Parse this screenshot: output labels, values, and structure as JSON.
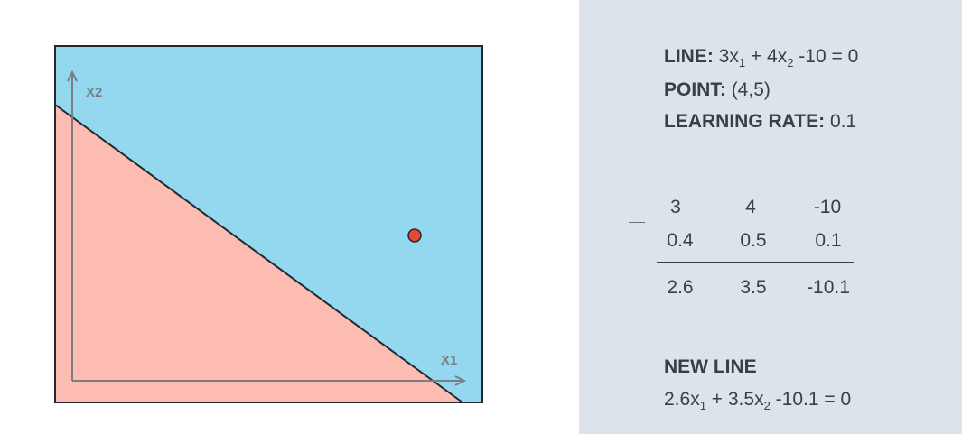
{
  "plot": {
    "x_axis_label": "X1",
    "y_axis_label": "X2",
    "colors": {
      "positive_region": "#93d8ef",
      "negative_region": "#fcbcb1",
      "boundary": "#1f2a33",
      "point": "#e34a33",
      "axis": "#7a7f86",
      "frame": "#1f2a33"
    }
  },
  "info": {
    "line_label": "LINE:",
    "line_eq": {
      "a": "3x",
      "s1": "1",
      "b": " + 4x",
      "s2": "2",
      "c": " -10 = 0"
    },
    "point_label": "POINT:",
    "point_value": "(4,5)",
    "lr_label": "LEARNING RATE:",
    "lr_value": "0.1"
  },
  "calc": {
    "operator": "–",
    "row1": [
      "3",
      "4",
      "-10"
    ],
    "row2": [
      "0.4",
      "0.5",
      "0.1"
    ],
    "result": [
      "2.6",
      "3.5",
      "-10.1"
    ]
  },
  "new_line": {
    "label": "NEW LINE",
    "eq": {
      "a": "2.6x",
      "s1": "1",
      "b": " + 3.5x",
      "s2": "2",
      "c": " -10.1 = 0"
    }
  }
}
